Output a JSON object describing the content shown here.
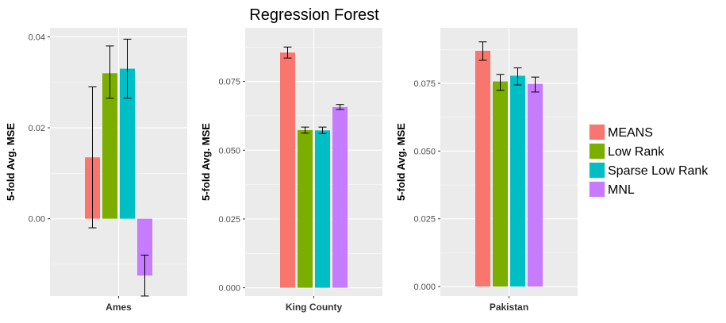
{
  "title": "Regression Forest",
  "legend": {
    "placement": "right",
    "entries": [
      {
        "name": "MEANS",
        "color": "#F8766D"
      },
      {
        "name": "Low Rank",
        "color": "#7CAE00"
      },
      {
        "name": "Sparse Low Rank",
        "color": "#00BFC4"
      },
      {
        "name": "MNL",
        "color": "#C77CFF"
      }
    ]
  },
  "chart_data": [
    {
      "type": "bar",
      "title": "",
      "xlabel": "Ames",
      "ylabel": "5-fold Avg. MSE",
      "categories": [
        "Ames"
      ],
      "ylim": [
        -0.017,
        0.042
      ],
      "yticks": [
        0.0,
        0.02,
        0.04
      ],
      "ytick_labels": [
        "0.00",
        "0.02",
        "0.04"
      ],
      "grid": true,
      "series": [
        {
          "name": "MEANS",
          "values": [
            0.0135
          ],
          "err_low": [
            -0.002
          ],
          "err_high": [
            0.029
          ]
        },
        {
          "name": "Low Rank",
          "values": [
            0.032
          ],
          "err_low": [
            0.0265
          ],
          "err_high": [
            0.038
          ]
        },
        {
          "name": "Sparse Low Rank",
          "values": [
            0.033
          ],
          "err_low": [
            0.0265
          ],
          "err_high": [
            0.0395
          ]
        },
        {
          "name": "MNL",
          "values": [
            -0.0125
          ],
          "err_low": [
            -0.017
          ],
          "err_high": [
            -0.008
          ]
        }
      ]
    },
    {
      "type": "bar",
      "title": "",
      "xlabel": "King County",
      "ylabel": "5-fold Avg. MSE",
      "categories": [
        "King County"
      ],
      "ylim": [
        -0.003,
        0.0945
      ],
      "yticks": [
        0.0,
        0.025,
        0.05,
        0.075
      ],
      "ytick_labels": [
        "0.000",
        "0.025",
        "0.050",
        "0.075"
      ],
      "grid": true,
      "series": [
        {
          "name": "MEANS",
          "values": [
            0.0855
          ],
          "err_low": [
            0.0835
          ],
          "err_high": [
            0.0875
          ]
        },
        {
          "name": "Low Rank",
          "values": [
            0.0573
          ],
          "err_low": [
            0.0562
          ],
          "err_high": [
            0.0584
          ]
        },
        {
          "name": "Sparse Low Rank",
          "values": [
            0.0572
          ],
          "err_low": [
            0.0561
          ],
          "err_high": [
            0.0584
          ]
        },
        {
          "name": "MNL",
          "values": [
            0.0657
          ],
          "err_low": [
            0.0648
          ],
          "err_high": [
            0.0666
          ]
        }
      ]
    },
    {
      "type": "bar",
      "title": "",
      "xlabel": "Pakistan",
      "ylabel": "5-fold Avg. MSE",
      "categories": [
        "Pakistan"
      ],
      "ylim": [
        -0.0035,
        0.0955
      ],
      "yticks": [
        0.0,
        0.025,
        0.05,
        0.075
      ],
      "ytick_labels": [
        "0.000",
        "0.025",
        "0.050",
        "0.075"
      ],
      "grid": true,
      "series": [
        {
          "name": "MEANS",
          "values": [
            0.087
          ],
          "err_low": [
            0.0835
          ],
          "err_high": [
            0.0903
          ]
        },
        {
          "name": "Low Rank",
          "values": [
            0.0757
          ],
          "err_low": [
            0.0724
          ],
          "err_high": [
            0.0783
          ]
        },
        {
          "name": "Sparse Low Rank",
          "values": [
            0.0778
          ],
          "err_low": [
            0.0744
          ],
          "err_high": [
            0.0807
          ]
        },
        {
          "name": "MNL",
          "values": [
            0.0748
          ],
          "err_low": [
            0.0718
          ],
          "err_high": [
            0.0773
          ]
        }
      ]
    }
  ]
}
